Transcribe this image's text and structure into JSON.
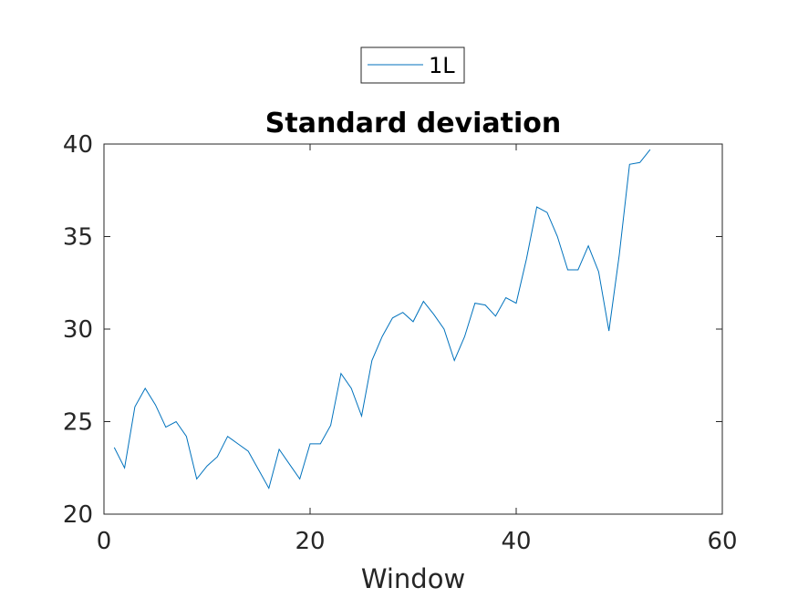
{
  "chart_data": {
    "type": "line",
    "title": "Standard deviation",
    "xlabel": "Window",
    "ylabel": "",
    "xlim": [
      0,
      60
    ],
    "ylim": [
      20,
      40
    ],
    "xticks": [
      0,
      20,
      40,
      60
    ],
    "yticks": [
      20,
      25,
      30,
      35,
      40
    ],
    "grid": false,
    "legend": {
      "placement": "top-center-outside",
      "entries": [
        "1L"
      ]
    },
    "series": [
      {
        "name": "1L",
        "color": "#0072bd",
        "x": [
          1,
          2,
          3,
          4,
          5,
          6,
          7,
          8,
          9,
          10,
          11,
          12,
          13,
          14,
          15,
          16,
          17,
          18,
          19,
          20,
          21,
          22,
          23,
          24,
          25,
          26,
          27,
          28,
          29,
          30,
          31,
          32,
          33,
          34,
          35,
          36,
          37,
          38,
          39,
          40,
          41,
          42,
          43,
          44,
          45,
          46,
          47,
          48,
          49,
          50,
          51,
          52,
          53
        ],
        "y": [
          23.6,
          22.5,
          25.8,
          26.8,
          25.9,
          24.7,
          25.0,
          24.2,
          21.9,
          22.6,
          23.1,
          24.2,
          23.8,
          23.4,
          22.4,
          21.4,
          23.5,
          22.7,
          21.9,
          23.8,
          23.8,
          24.8,
          27.6,
          26.8,
          25.3,
          28.3,
          29.6,
          30.6,
          30.9,
          30.4,
          31.5,
          30.8,
          30.0,
          28.3,
          29.6,
          31.4,
          31.3,
          30.7,
          31.7,
          31.4,
          33.8,
          36.6,
          36.3,
          35.0,
          33.2,
          33.2,
          34.5,
          33.1,
          29.9,
          34.0,
          38.9,
          39.0,
          39.7
        ]
      }
    ]
  }
}
